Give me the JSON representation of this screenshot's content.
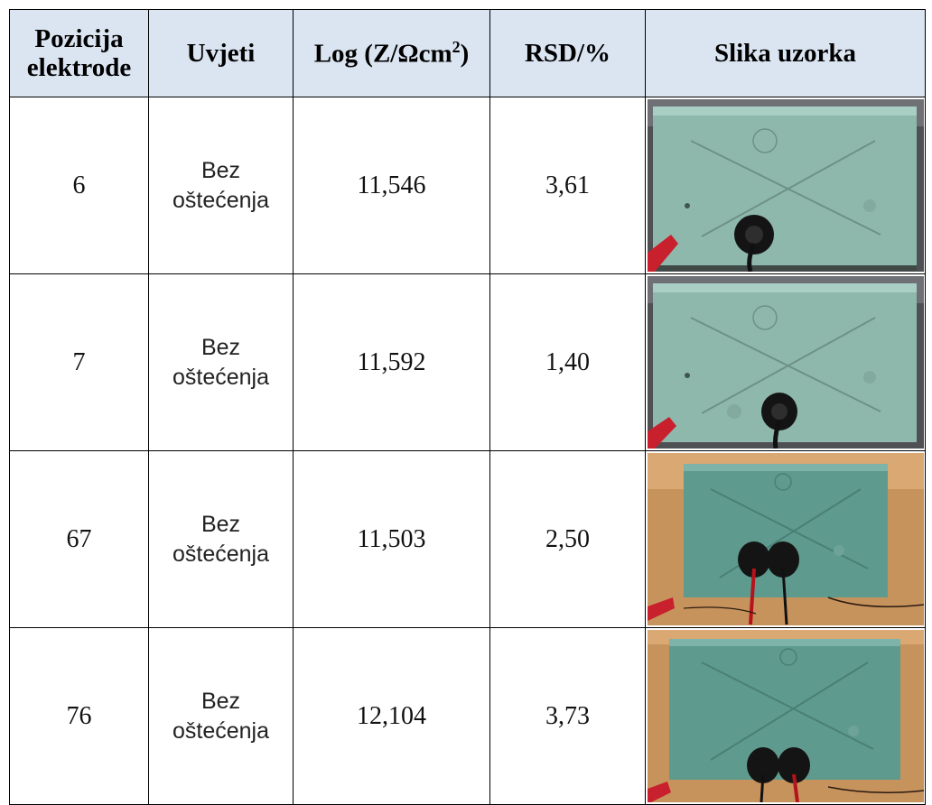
{
  "table": {
    "headers": {
      "position_line1": "Pozicija",
      "position_line2": "elektrode",
      "conditions": "Uvjeti",
      "logz_prefix": "Log (Z/Ωcm",
      "logz_sup": "2",
      "logz_suffix": ")",
      "rsd": "RSD/%",
      "image": "Slika uzorka"
    },
    "rows": [
      {
        "position": "6",
        "cond_line1": "Bez",
        "cond_line2": "oštećenja",
        "logz": "11,546",
        "rsd": "3,61",
        "photo": "green-coated-panel-single-electrode-grey-background"
      },
      {
        "position": "7",
        "cond_line1": "Bez",
        "cond_line2": "oštećenja",
        "logz": "11,592",
        "rsd": "1,40",
        "photo": "green-coated-panel-single-electrode-grey-background"
      },
      {
        "position": "67",
        "cond_line1": "Bez",
        "cond_line2": "oštećenja",
        "logz": "11,503",
        "rsd": "2,50",
        "photo": "green-coated-panel-two-electrodes-wood-background"
      },
      {
        "position": "76",
        "cond_line1": "Bez",
        "cond_line2": "oštećenja",
        "logz": "12,104",
        "rsd": "3,73",
        "photo": "green-coated-panel-two-electrodes-wood-background"
      }
    ],
    "colors": {
      "header_bg": "#dbe5f1",
      "panel_green": "#8fb8ad",
      "background_grey": "#5e5f63",
      "background_wood": "#c7935d",
      "clip_red": "#c8202c"
    }
  }
}
